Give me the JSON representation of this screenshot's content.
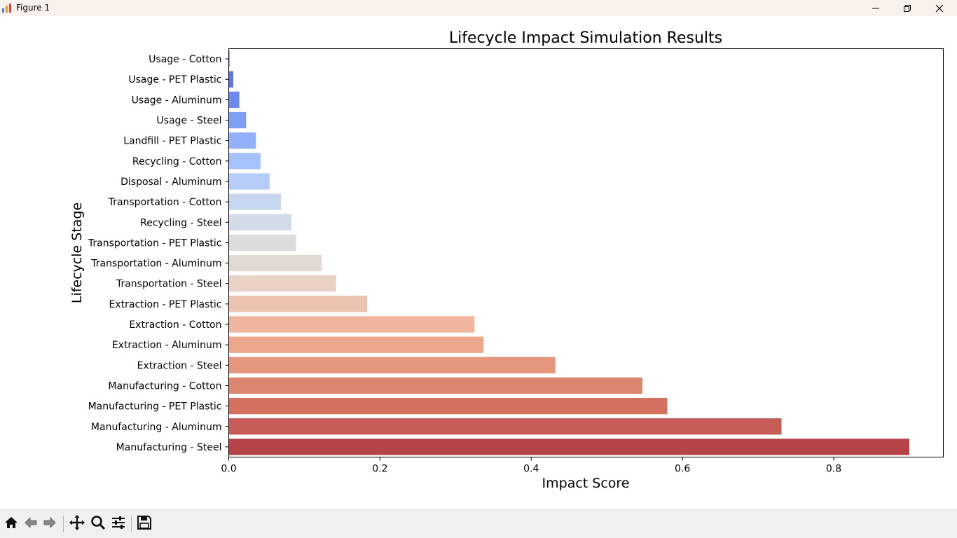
{
  "window": {
    "title": "Figure 1",
    "icons": [
      "app-icon",
      "minimize-icon",
      "restore-icon",
      "close-icon"
    ]
  },
  "toolbar": {
    "buttons": [
      "home-icon",
      "back-icon",
      "forward-icon",
      "pan-icon",
      "zoom-icon",
      "configure-subplots-icon",
      "save-icon"
    ]
  },
  "chart_data": {
    "type": "bar",
    "orientation": "horizontal",
    "title": "Lifecycle Impact Simulation Results",
    "xlabel": "Impact Score",
    "ylabel": "Lifecycle Stage",
    "xlim": [
      0,
      0.945
    ],
    "xticks": [
      "0.0",
      "0.2",
      "0.4",
      "0.6",
      "0.8"
    ],
    "grid": false,
    "colormap": "coolwarm",
    "categories": [
      "Usage - Cotton",
      "Usage - PET Plastic",
      "Usage - Aluminum",
      "Usage - Steel",
      "Landfill - PET Plastic",
      "Recycling - Cotton",
      "Disposal - Aluminum",
      "Transportation - Cotton",
      "Recycling - Steel",
      "Transportation - PET Plastic",
      "Transportation - Aluminum",
      "Transportation - Steel",
      "Extraction - PET Plastic",
      "Extraction - Cotton",
      "Extraction - Aluminum",
      "Extraction - Steel",
      "Manufacturing - Cotton",
      "Manufacturing - PET Plastic",
      "Manufacturing - Aluminum",
      "Manufacturing - Steel"
    ],
    "values": [
      0.001,
      0.006,
      0.014,
      0.023,
      0.036,
      0.042,
      0.054,
      0.069,
      0.083,
      0.089,
      0.123,
      0.142,
      0.183,
      0.325,
      0.337,
      0.432,
      0.547,
      0.58,
      0.731,
      0.9
    ],
    "colors": [
      "#4a62d5",
      "#5a78e4",
      "#6a8bef",
      "#7e9ff6",
      "#93b0fa",
      "#a6c1fc",
      "#b7cdf9",
      "#c7d7f2",
      "#d3dbe9",
      "#dcdcdc",
      "#e3d9d3",
      "#e9d1c6",
      "#edc4b2",
      "#efb59e",
      "#eda88c",
      "#e5977e",
      "#db856f",
      "#d37161",
      "#c65c55",
      "#b64347"
    ]
  }
}
